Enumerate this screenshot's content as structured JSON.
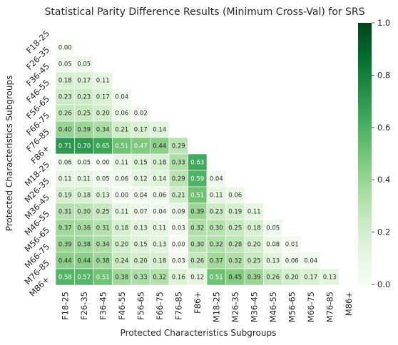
{
  "chart_data": {
    "type": "heatmap",
    "title": "Statistical Parity Difference Results (Minimum Cross-Val) for SRS",
    "xlabel": "Protected Characteristics Subgroups",
    "ylabel": "Protected Characteristics Subgroups",
    "categories": [
      "F18-25",
      "F26-35",
      "F36-45",
      "F46-55",
      "F56-65",
      "F66-75",
      "F76-85",
      "F86+",
      "M18-25",
      "M26-35",
      "M36-45",
      "M46-55",
      "M56-65",
      "M66-75",
      "M76-85",
      "M86+"
    ],
    "matrix": [
      [],
      [
        "0.00"
      ],
      [
        "0.05",
        "0.05"
      ],
      [
        "0.18",
        "0.17",
        "0.11"
      ],
      [
        "0.23",
        "0.23",
        "0.17",
        "0.04"
      ],
      [
        "0.26",
        "0.25",
        "0.20",
        "0.06",
        "0.02"
      ],
      [
        "0.40",
        "0.39",
        "0.34",
        "0.21",
        "0.17",
        "0.14"
      ],
      [
        "0.71",
        "0.70",
        "0.65",
        "0.51",
        "0.47",
        "0.44",
        "0.29"
      ],
      [
        "0.06",
        "0.05",
        "0.00",
        "0.11",
        "0.15",
        "0.18",
        "0.33",
        "0.63"
      ],
      [
        "0.11",
        "0.11",
        "0.05",
        "0.06",
        "0.12",
        "0.14",
        "0.29",
        "0.59",
        "0.04"
      ],
      [
        "0.19",
        "0.18",
        "0.13",
        "0.00",
        "0.04",
        "0.06",
        "0.21",
        "0.51",
        "0.11",
        "0.06"
      ],
      [
        "0.31",
        "0.30",
        "0.25",
        "0.11",
        "0.07",
        "0.04",
        "0.09",
        "0.39",
        "0.23",
        "0.19",
        "0.11"
      ],
      [
        "0.37",
        "0.36",
        "0.31",
        "0.18",
        "0.13",
        "0.11",
        "0.03",
        "0.32",
        "0.30",
        "0.25",
        "0.18",
        "0.05"
      ],
      [
        "0.39",
        "0.38",
        "0.34",
        "0.20",
        "0.15",
        "0.13",
        "0.00",
        "0.30",
        "0.32",
        "0.28",
        "0.20",
        "0.08",
        "0.01"
      ],
      [
        "0.44",
        "0.44",
        "0.38",
        "0.24",
        "0.20",
        "0.18",
        "0.03",
        "0.26",
        "0.37",
        "0.32",
        "0.25",
        "0.13",
        "0.06",
        "0.04"
      ],
      [
        "0.58",
        "0.57",
        "0.51",
        "0.38",
        "0.33",
        "0.32",
        "0.16",
        "0.12",
        "0.51",
        "0.45",
        "0.39",
        "0.26",
        "0.20",
        "0.17",
        "0.13"
      ]
    ],
    "colorbar": {
      "min": 0,
      "max": 1,
      "ticks": [
        "0.0",
        "0.2",
        "0.4",
        "0.6",
        "0.8",
        "1.0"
      ],
      "colormap": "Greens"
    },
    "mask": "upper-triangle-and-diagonal",
    "grid": false
  }
}
